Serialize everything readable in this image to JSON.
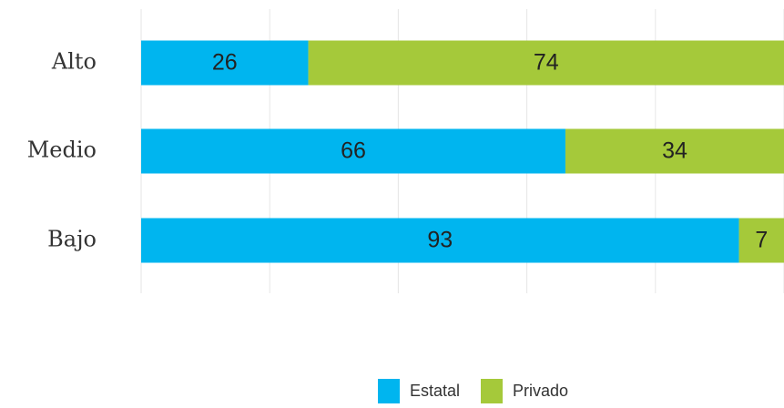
{
  "chart_data": {
    "type": "stacked-bar-horizontal",
    "categories": [
      "Alto",
      "Medio",
      "Bajo"
    ],
    "series": [
      {
        "name": "Estatal",
        "color": "#00b5ef",
        "values": [
          26,
          66,
          93
        ]
      },
      {
        "name": "Privado",
        "color": "#a5c93a",
        "values": [
          74,
          34,
          7
        ]
      }
    ],
    "xlim": [
      0,
      100
    ],
    "xticks": [
      0,
      20,
      40,
      60,
      80,
      100
    ],
    "grid": true
  }
}
